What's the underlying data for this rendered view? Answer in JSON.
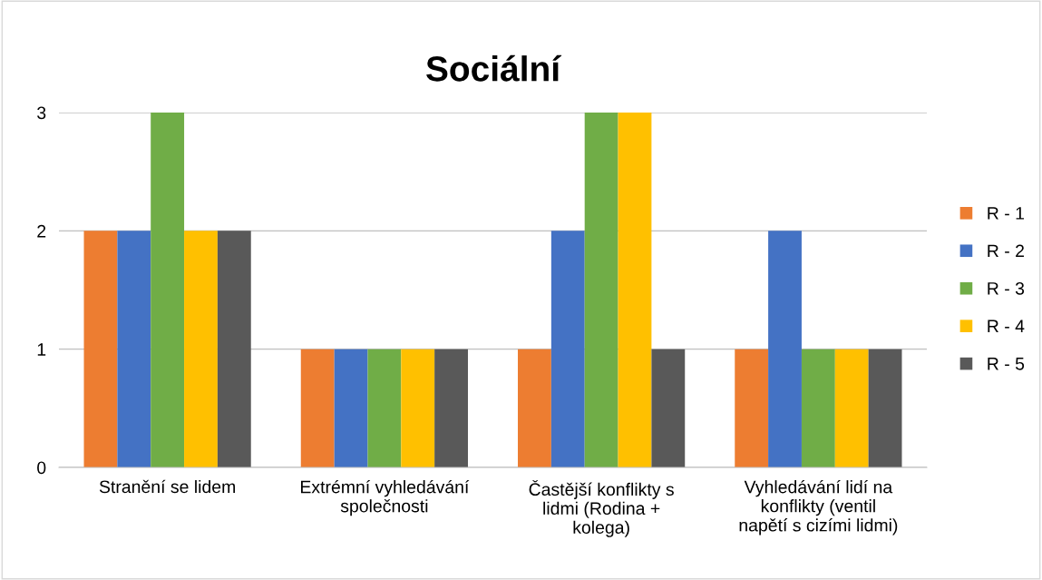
{
  "chart_data": {
    "type": "bar",
    "title": "Sociální",
    "categories": [
      "Stranění se lidem",
      "Extrémní vyhledávání\nspolečnosti",
      "Častější konflikty s\nlidmi (Rodina +\nkolega)",
      "Vyhledávání lidí na\nkonflikty (ventil\nnapětí s cizími lidmi)"
    ],
    "series": [
      {
        "name": "R - 1",
        "color": "#ed7d31",
        "values": [
          2,
          1,
          1,
          1
        ]
      },
      {
        "name": "R - 2",
        "color": "#4472c4",
        "values": [
          2,
          1,
          2,
          2
        ]
      },
      {
        "name": "R - 3",
        "color": "#70ad47",
        "values": [
          3,
          1,
          3,
          1
        ]
      },
      {
        "name": "R - 4",
        "color": "#ffc000",
        "values": [
          2,
          1,
          3,
          1
        ]
      },
      {
        "name": "R - 5",
        "color": "#595959",
        "values": [
          2,
          1,
          1,
          1
        ]
      }
    ],
    "ylim": [
      0,
      3
    ],
    "yticks": [
      0,
      1,
      2,
      3
    ],
    "grid": "y",
    "legend": "right"
  }
}
